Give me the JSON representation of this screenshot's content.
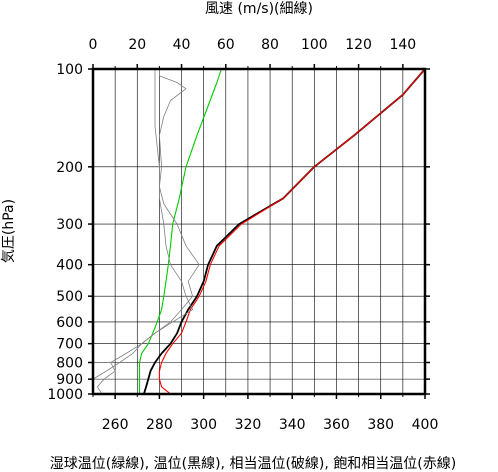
{
  "chart_data": {
    "type": "line",
    "title_top": "風速 (m/s)(細線)",
    "xlabel_bottom": "湿球温位(緑線), 温位(黒線), 相当温位(破線), 飽和相当温位(赤線)",
    "ylabel": "気圧(hPa)",
    "y_scale": "log",
    "y_inverted": true,
    "ylim": [
      100,
      1000
    ],
    "y_ticks": [
      "100",
      "200",
      "300",
      "400",
      "500",
      "600",
      "700",
      "800",
      "900",
      "1000"
    ],
    "x_bottom": {
      "unit": "K",
      "lim": [
        250,
        400
      ],
      "ticks": [
        "260",
        "280",
        "300",
        "320",
        "340",
        "360",
        "380",
        "400"
      ]
    },
    "x_top": {
      "unit": "m/s",
      "lim": [
        0,
        150
      ],
      "ticks": [
        "0",
        "20",
        "40",
        "60",
        "80",
        "100",
        "120",
        "140"
      ]
    },
    "grid": true,
    "series": [
      {
        "color": "#000000",
        "axis": "bottom",
        "points": [
          [
            273,
            1000
          ],
          [
            274,
            950
          ],
          [
            275,
            900
          ],
          [
            276,
            850
          ],
          [
            278,
            800
          ],
          [
            281,
            750
          ],
          [
            285,
            700
          ],
          [
            288,
            650
          ],
          [
            290,
            600
          ],
          [
            293,
            550
          ],
          [
            297,
            500
          ],
          [
            300,
            450
          ],
          [
            302,
            400
          ],
          [
            306,
            350
          ],
          [
            316,
            300
          ],
          [
            336,
            250
          ],
          [
            350,
            200
          ],
          [
            368,
            160
          ],
          [
            390,
            120
          ],
          [
            400,
            100
          ]
        ]
      },
      {
        "color": "#ff0000",
        "axis": "bottom",
        "points": [
          [
            285,
            1000
          ],
          [
            281,
            950
          ],
          [
            280,
            900
          ],
          [
            280,
            850
          ],
          [
            281,
            800
          ],
          [
            283,
            750
          ],
          [
            286,
            700
          ],
          [
            290,
            650
          ],
          [
            292,
            600
          ],
          [
            294,
            550
          ],
          [
            298,
            500
          ],
          [
            301,
            450
          ],
          [
            303,
            400
          ],
          [
            307,
            350
          ],
          [
            317,
            300
          ],
          [
            336,
            250
          ],
          [
            350,
            200
          ],
          [
            368,
            160
          ],
          [
            390,
            120
          ],
          [
            400,
            100
          ]
        ]
      },
      {
        "color": "#00cc00",
        "axis": "bottom",
        "points": [
          [
            271,
            1000
          ],
          [
            271,
            950
          ],
          [
            271,
            900
          ],
          [
            271,
            850
          ],
          [
            271,
            800
          ],
          [
            272,
            750
          ],
          [
            275,
            700
          ],
          [
            277,
            650
          ],
          [
            279,
            600
          ],
          [
            281,
            550
          ],
          [
            282,
            500
          ],
          [
            283,
            450
          ],
          [
            284,
            400
          ],
          [
            285,
            350
          ],
          [
            286,
            300
          ],
          [
            289,
            250
          ],
          [
            292,
            200
          ],
          [
            297,
            160
          ],
          [
            302,
            130
          ],
          [
            306,
            110
          ],
          [
            308,
            100
          ]
        ]
      },
      {
        "color": "#808080",
        "axis": "top",
        "points": [
          [
            4,
            1000
          ],
          [
            2,
            950
          ],
          [
            5,
            900
          ],
          [
            10,
            850
          ],
          [
            8,
            800
          ],
          [
            15,
            750
          ],
          [
            22,
            700
          ],
          [
            28,
            650
          ],
          [
            35,
            600
          ],
          [
            40,
            550
          ],
          [
            45,
            500
          ],
          [
            43,
            450
          ],
          [
            48,
            400
          ],
          [
            42,
            350
          ],
          [
            38,
            300
          ],
          [
            32,
            260
          ],
          [
            30,
            230
          ],
          [
            31,
            200
          ],
          [
            30,
            160
          ],
          [
            32,
            140
          ],
          [
            35,
            125
          ],
          [
            42,
            115
          ],
          [
            38,
            110
          ],
          [
            30,
            105
          ],
          [
            30,
            100
          ]
        ]
      },
      {
        "color": "#808080",
        "axis": "top",
        "points": [
          [
            0,
            900
          ],
          [
            6,
            850
          ],
          [
            12,
            800
          ],
          [
            18,
            750
          ],
          [
            22,
            700
          ],
          [
            28,
            650
          ],
          [
            36,
            600
          ],
          [
            45,
            550
          ],
          [
            42,
            500
          ],
          [
            40,
            450
          ],
          [
            35,
            400
          ],
          [
            33,
            350
          ],
          [
            32,
            300
          ],
          [
            30,
            250
          ],
          [
            30,
            200
          ],
          [
            28,
            150
          ],
          [
            28,
            100
          ]
        ]
      }
    ]
  }
}
